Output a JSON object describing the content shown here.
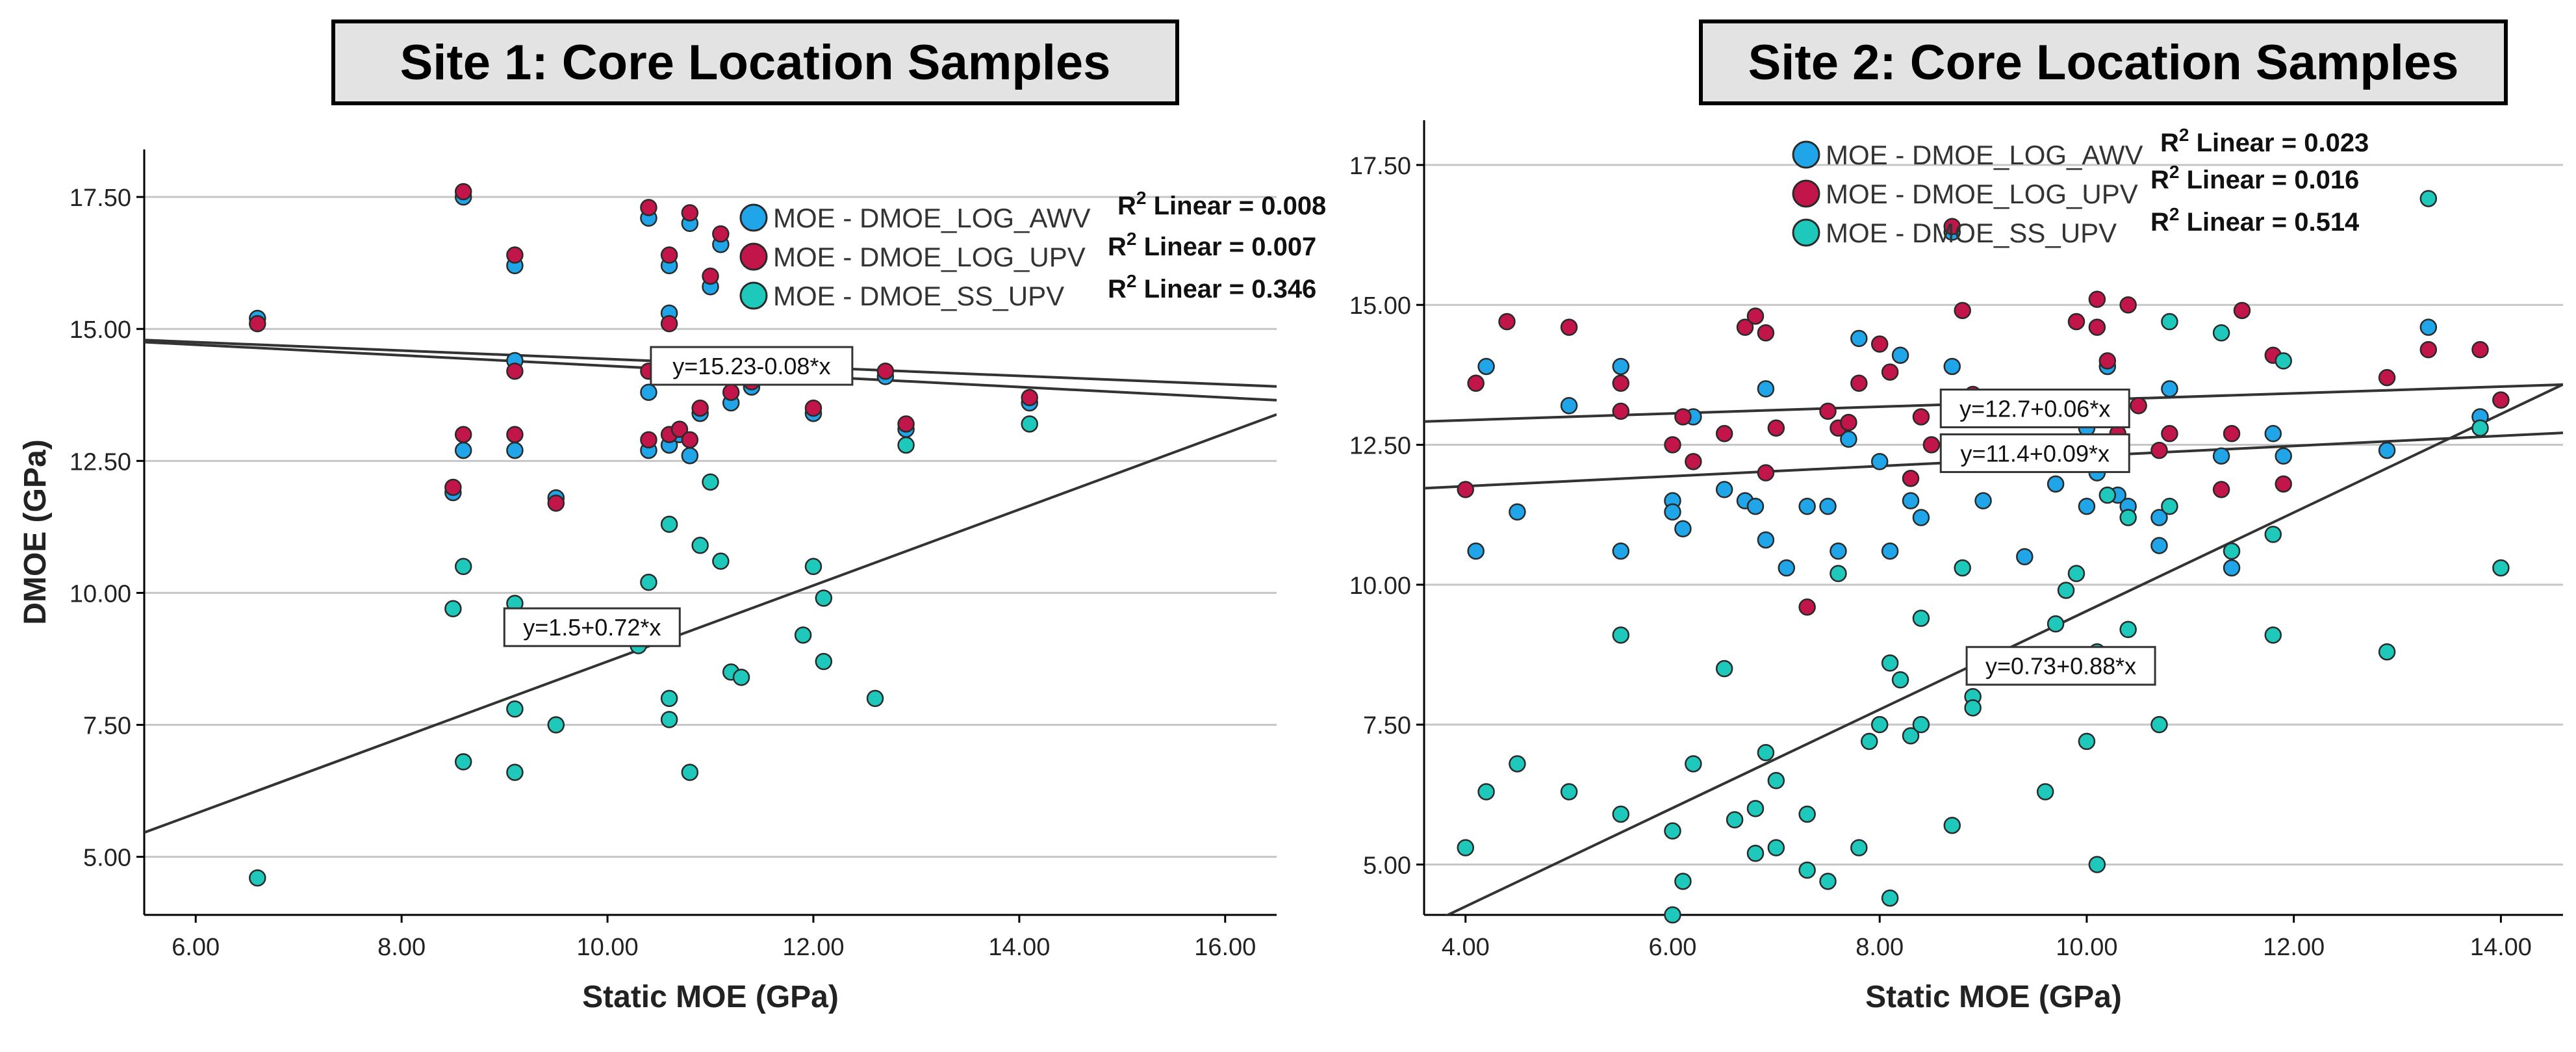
{
  "chart_data": [
    {
      "type": "scatter",
      "title": "Site 1: Core Location Samples",
      "xlabel": "Static MOE (GPa)",
      "ylabel": "DMOE (GPa)",
      "xlim": [
        5.5,
        16.5
      ],
      "ylim": [
        3.9,
        18.4
      ],
      "xticks": [
        6,
        8,
        10,
        12,
        14,
        16
      ],
      "xtick_labels": [
        "6.00",
        "8.00",
        "10.00",
        "12.00",
        "14.00",
        "16.00"
      ],
      "yticks": [
        5,
        7.5,
        10,
        12.5,
        15,
        17.5
      ],
      "ytick_labels": [
        "5.00",
        "7.50",
        "10.00",
        "12.50",
        "15.00",
        "17.50"
      ],
      "grid": "horizontal",
      "legend_position": "top-right",
      "series": [
        {
          "name": "MOE - DMOE_LOG_AWV",
          "color": "#1fa5e8",
          "r2_text": "Linear = 0.008",
          "points": [
            [
              6.6,
              15.2
            ],
            [
              8.5,
              11.9
            ],
            [
              8.6,
              17.5
            ],
            [
              8.6,
              12.7
            ],
            [
              9.1,
              14.4
            ],
            [
              9.1,
              16.2
            ],
            [
              9.1,
              12.7
            ],
            [
              9.5,
              11.8
            ],
            [
              10.4,
              17.1
            ],
            [
              10.4,
              12.7
            ],
            [
              10.4,
              13.8
            ],
            [
              10.6,
              15.3
            ],
            [
              10.6,
              16.2
            ],
            [
              10.6,
              12.8
            ],
            [
              10.7,
              13.0
            ],
            [
              10.8,
              17.0
            ],
            [
              10.8,
              12.6
            ],
            [
              10.9,
              13.4
            ],
            [
              11.0,
              15.8
            ],
            [
              11.1,
              16.6
            ],
            [
              11.2,
              13.6
            ],
            [
              11.3,
              14.3
            ],
            [
              11.4,
              13.9
            ],
            [
              11.9,
              14.1
            ],
            [
              12.0,
              13.4
            ],
            [
              12.0,
              14.4
            ],
            [
              12.1,
              14.3
            ],
            [
              12.7,
              14.1
            ],
            [
              12.9,
              13.1
            ],
            [
              14.1,
              13.6
            ]
          ]
        },
        {
          "name": "MOE - DMOE_LOG_UPV",
          "color": "#c2154a",
          "r2_text": "Linear = 0.007",
          "points": [
            [
              6.6,
              15.1
            ],
            [
              8.5,
              12.0
            ],
            [
              8.6,
              17.6
            ],
            [
              8.6,
              13.0
            ],
            [
              9.1,
              14.2
            ],
            [
              9.1,
              16.4
            ],
            [
              9.1,
              13.0
            ],
            [
              9.5,
              11.7
            ],
            [
              10.4,
              17.3
            ],
            [
              10.4,
              12.9
            ],
            [
              10.4,
              14.2
            ],
            [
              10.6,
              15.1
            ],
            [
              10.6,
              16.4
            ],
            [
              10.6,
              13.0
            ],
            [
              10.7,
              13.1
            ],
            [
              10.8,
              17.2
            ],
            [
              10.8,
              12.9
            ],
            [
              10.9,
              13.5
            ],
            [
              11.0,
              16.0
            ],
            [
              11.1,
              16.8
            ],
            [
              11.2,
              13.8
            ],
            [
              11.3,
              14.5
            ],
            [
              11.4,
              14.0
            ],
            [
              11.9,
              14.3
            ],
            [
              12.0,
              13.5
            ],
            [
              12.1,
              14.3
            ],
            [
              12.7,
              14.2
            ],
            [
              12.9,
              13.2
            ],
            [
              14.1,
              13.7
            ]
          ]
        },
        {
          "name": "MOE - DMOE_SS_UPV",
          "color": "#1ec9bb",
          "r2_text": "Linear = 0.346",
          "points": [
            [
              6.6,
              4.6
            ],
            [
              8.5,
              9.7
            ],
            [
              8.6,
              10.5
            ],
            [
              8.6,
              6.8
            ],
            [
              9.1,
              7.8
            ],
            [
              9.1,
              9.8
            ],
            [
              9.1,
              6.6
            ],
            [
              9.5,
              7.5
            ],
            [
              10.3,
              9.0
            ],
            [
              10.4,
              10.2
            ],
            [
              10.6,
              11.3
            ],
            [
              10.6,
              8.0
            ],
            [
              10.6,
              7.6
            ],
            [
              10.8,
              6.6
            ],
            [
              10.9,
              10.9
            ],
            [
              11.0,
              12.1
            ],
            [
              11.1,
              10.6
            ],
            [
              11.2,
              8.5
            ],
            [
              11.3,
              8.4
            ],
            [
              11.9,
              9.2
            ],
            [
              12.0,
              10.5
            ],
            [
              12.1,
              9.9
            ],
            [
              12.1,
              8.7
            ],
            [
              12.6,
              8.0
            ],
            [
              12.9,
              12.8
            ],
            [
              14.1,
              13.2
            ]
          ]
        }
      ],
      "fit_lines": [
        {
          "label": "y=15.23-0.08*x",
          "intercept": 15.23,
          "slope": -0.08
        },
        {
          "intercept": 15.3,
          "slope": -0.1
        },
        {
          "label": "y=1.5+0.72*x",
          "intercept": 1.5,
          "slope": 0.72
        }
      ],
      "fit_label_anchor": [
        [
          11.4,
          14.3
        ],
        [
          9.85,
          9.35
        ]
      ]
    },
    {
      "type": "scatter",
      "title": "Site 2: Core Location Samples",
      "xlabel": "Static MOE (GPa)",
      "ylabel": "",
      "xlim": [
        3.6,
        14.6
      ],
      "ylim": [
        4.1,
        18.3
      ],
      "xticks": [
        4,
        6,
        8,
        10,
        12,
        14
      ],
      "xtick_labels": [
        "4.00",
        "6.00",
        "8.00",
        "10.00",
        "12.00",
        "14.00"
      ],
      "yticks": [
        5,
        7.5,
        10,
        12.5,
        15,
        17.5
      ],
      "ytick_labels": [
        "5.00",
        "7.50",
        "10.00",
        "12.50",
        "15.00",
        "17.50"
      ],
      "grid": "horizontal",
      "legend_position": "top",
      "series": [
        {
          "name": "MOE - DMOE_LOG_AWV",
          "color": "#1fa5e8",
          "r2_text": "Linear = 0.023",
          "points": [
            [
              4.1,
              10.6
            ],
            [
              4.2,
              13.9
            ],
            [
              4.5,
              11.3
            ],
            [
              5.0,
              13.2
            ],
            [
              5.5,
              13.9
            ],
            [
              5.5,
              10.6
            ],
            [
              6.0,
              11.5
            ],
            [
              6.0,
              11.3
            ],
            [
              6.1,
              11.0
            ],
            [
              6.2,
              13.0
            ],
            [
              6.5,
              11.7
            ],
            [
              6.7,
              11.5
            ],
            [
              6.8,
              11.4
            ],
            [
              6.9,
              10.8
            ],
            [
              6.9,
              13.5
            ],
            [
              7.1,
              10.3
            ],
            [
              7.3,
              11.4
            ],
            [
              7.5,
              11.4
            ],
            [
              7.6,
              10.6
            ],
            [
              7.7,
              12.6
            ],
            [
              7.8,
              14.4
            ],
            [
              8.0,
              12.2
            ],
            [
              8.1,
              10.6
            ],
            [
              8.2,
              14.1
            ],
            [
              8.3,
              11.5
            ],
            [
              8.4,
              11.2
            ],
            [
              8.7,
              16.3
            ],
            [
              8.7,
              13.9
            ],
            [
              9.0,
              11.5
            ],
            [
              9.4,
              10.5
            ],
            [
              9.7,
              11.8
            ],
            [
              10.0,
              11.4
            ],
            [
              10.0,
              12.8
            ],
            [
              10.1,
              12.0
            ],
            [
              10.2,
              13.9
            ],
            [
              10.3,
              11.6
            ],
            [
              10.4,
              11.4
            ],
            [
              10.7,
              11.2
            ],
            [
              10.7,
              10.7
            ],
            [
              10.8,
              13.5
            ],
            [
              11.3,
              12.3
            ],
            [
              11.4,
              10.3
            ],
            [
              11.8,
              12.7
            ],
            [
              11.9,
              12.3
            ],
            [
              12.9,
              12.4
            ],
            [
              13.3,
              14.6
            ],
            [
              13.8,
              13.0
            ],
            [
              14.0,
              13.3
            ]
          ]
        },
        {
          "name": "MOE - DMOE_LOG_UPV",
          "color": "#c2154a",
          "r2_text": "Linear = 0.016",
          "points": [
            [
              4.0,
              11.7
            ],
            [
              4.1,
              13.6
            ],
            [
              4.4,
              14.7
            ],
            [
              5.0,
              14.6
            ],
            [
              5.5,
              13.6
            ],
            [
              5.5,
              13.1
            ],
            [
              6.0,
              12.5
            ],
            [
              6.1,
              13.0
            ],
            [
              6.2,
              12.2
            ],
            [
              6.5,
              12.7
            ],
            [
              6.7,
              14.6
            ],
            [
              6.8,
              14.8
            ],
            [
              6.9,
              12.0
            ],
            [
              6.9,
              14.5
            ],
            [
              7.0,
              12.8
            ],
            [
              7.3,
              9.6
            ],
            [
              7.5,
              13.1
            ],
            [
              7.6,
              12.8
            ],
            [
              7.7,
              12.9
            ],
            [
              7.8,
              13.6
            ],
            [
              8.0,
              14.3
            ],
            [
              8.1,
              13.8
            ],
            [
              8.3,
              11.9
            ],
            [
              8.4,
              13.0
            ],
            [
              8.5,
              12.5
            ],
            [
              8.7,
              16.4
            ],
            [
              8.8,
              14.9
            ],
            [
              8.9,
              13.4
            ],
            [
              9.9,
              14.7
            ],
            [
              10.0,
              12.3
            ],
            [
              10.0,
              13.3
            ],
            [
              10.1,
              15.1
            ],
            [
              10.1,
              14.6
            ],
            [
              10.2,
              14.0
            ],
            [
              10.3,
              12.7
            ],
            [
              10.4,
              15.0
            ],
            [
              10.5,
              13.2
            ],
            [
              10.7,
              12.4
            ],
            [
              10.8,
              12.7
            ],
            [
              11.3,
              11.7
            ],
            [
              11.4,
              12.7
            ],
            [
              11.5,
              14.9
            ],
            [
              11.8,
              14.1
            ],
            [
              11.9,
              11.8
            ],
            [
              12.9,
              13.7
            ],
            [
              13.3,
              14.2
            ],
            [
              13.8,
              14.2
            ],
            [
              14.0,
              13.3
            ]
          ]
        },
        {
          "name": "MOE - DMOE_SS_UPV",
          "color": "#1ec9bb",
          "r2_text": "Linear = 0.514",
          "points": [
            [
              4.0,
              5.3
            ],
            [
              4.2,
              6.3
            ],
            [
              4.5,
              6.8
            ],
            [
              5.0,
              6.3
            ],
            [
              5.5,
              9.1
            ],
            [
              5.5,
              5.9
            ],
            [
              6.0,
              5.6
            ],
            [
              6.0,
              4.1
            ],
            [
              6.1,
              4.7
            ],
            [
              6.2,
              6.8
            ],
            [
              6.5,
              8.5
            ],
            [
              6.6,
              5.8
            ],
            [
              6.8,
              6.0
            ],
            [
              6.8,
              5.2
            ],
            [
              6.9,
              7.0
            ],
            [
              7.0,
              6.5
            ],
            [
              7.0,
              5.3
            ],
            [
              7.3,
              5.9
            ],
            [
              7.3,
              4.9
            ],
            [
              7.5,
              4.7
            ],
            [
              7.6,
              10.2
            ],
            [
              7.8,
              5.3
            ],
            [
              7.9,
              7.2
            ],
            [
              8.0,
              7.5
            ],
            [
              8.1,
              8.6
            ],
            [
              8.1,
              4.4
            ],
            [
              8.2,
              8.3
            ],
            [
              8.3,
              7.3
            ],
            [
              8.4,
              7.5
            ],
            [
              8.4,
              9.4
            ],
            [
              8.7,
              5.7
            ],
            [
              8.8,
              10.3
            ],
            [
              8.9,
              8.0
            ],
            [
              8.9,
              7.8
            ],
            [
              9.6,
              6.3
            ],
            [
              9.7,
              9.3
            ],
            [
              9.8,
              9.9
            ],
            [
              9.9,
              10.2
            ],
            [
              10.0,
              7.2
            ],
            [
              10.1,
              5.0
            ],
            [
              10.1,
              8.8
            ],
            [
              10.2,
              11.6
            ],
            [
              10.3,
              8.4
            ],
            [
              10.4,
              11.2
            ],
            [
              10.4,
              9.2
            ],
            [
              10.7,
              7.5
            ],
            [
              10.8,
              11.4
            ],
            [
              10.8,
              14.7
            ],
            [
              11.3,
              14.5
            ],
            [
              11.4,
              10.6
            ],
            [
              11.8,
              9.1
            ],
            [
              11.8,
              10.9
            ],
            [
              11.9,
              14.0
            ],
            [
              12.9,
              8.8
            ],
            [
              13.3,
              16.9
            ],
            [
              13.8,
              12.8
            ],
            [
              14.0,
              10.3
            ]
          ]
        }
      ],
      "fit_lines": [
        {
          "label": "y=12.7+0.06*x",
          "intercept": 12.7,
          "slope": 0.06
        },
        {
          "label": "y=11.4+0.09*x",
          "intercept": 11.4,
          "slope": 0.09
        },
        {
          "label": "y=0.73+0.88*x",
          "intercept": 0.73,
          "slope": 0.88
        }
      ],
      "fit_label_anchor": [
        [
          9.5,
          13.15
        ],
        [
          9.5,
          12.35
        ],
        [
          9.75,
          8.55
        ]
      ]
    }
  ]
}
